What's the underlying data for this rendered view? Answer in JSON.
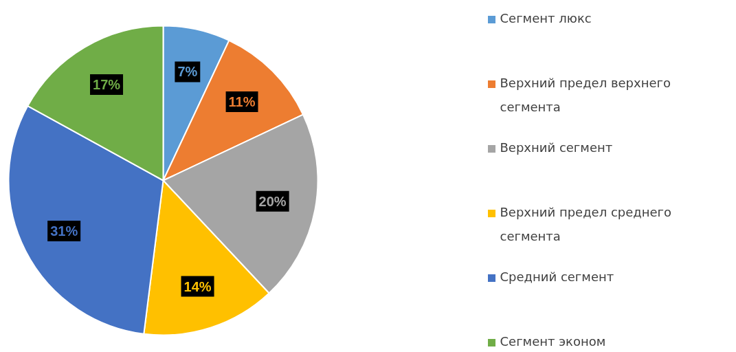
{
  "chart_data": {
    "type": "pie",
    "categories": [
      "Сегмент люкс",
      "Верхний предел верхнего сегмента",
      "Верхний сегмент",
      "Верхний предел среднего сегмента",
      "Средний сегмент",
      "Сегмент эконом"
    ],
    "values": [
      7,
      11,
      20,
      14,
      31,
      17
    ],
    "value_labels": [
      "7%",
      "11%",
      "20%",
      "14%",
      "31%",
      "17%"
    ],
    "colors": [
      "#5b9bd5",
      "#ed7d31",
      "#a5a5a5",
      "#ffc000",
      "#4472c4",
      "#70ad47"
    ],
    "legend": "right"
  }
}
